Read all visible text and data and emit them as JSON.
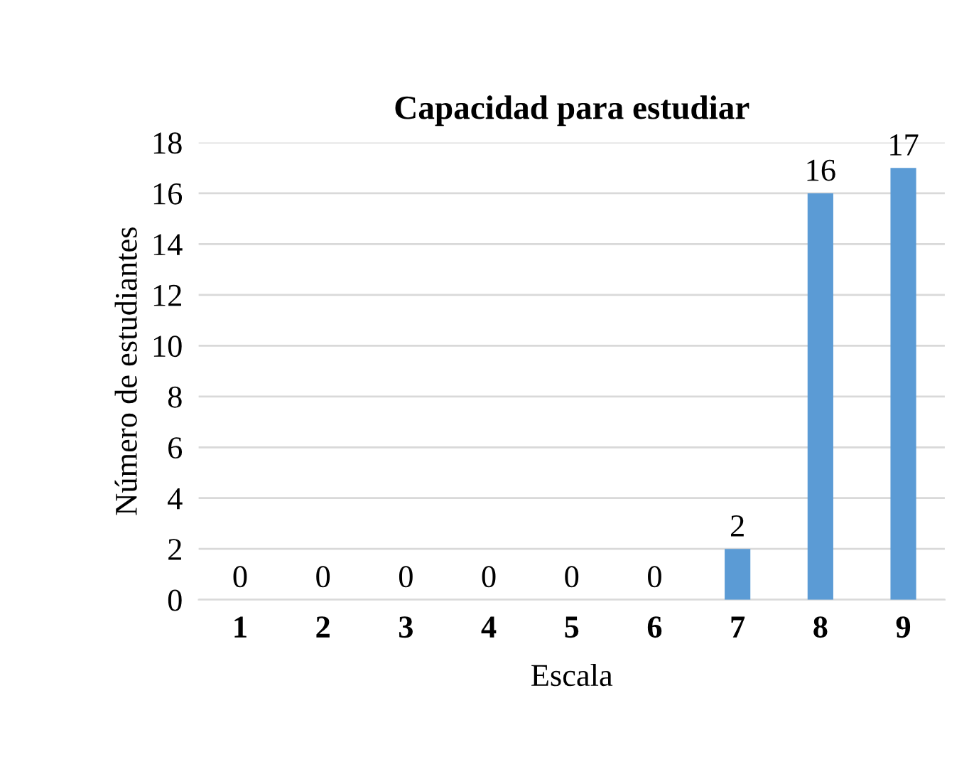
{
  "chart_data": {
    "type": "bar",
    "title": "Capacidad para estudiar",
    "xlabel": "Escala",
    "ylabel": "Número de estudiantes",
    "categories": [
      "1",
      "2",
      "3",
      "4",
      "5",
      "6",
      "7",
      "8",
      "9"
    ],
    "values": [
      0,
      0,
      0,
      0,
      0,
      0,
      2,
      16,
      17
    ],
    "color": "#5b9bd5",
    "ylim": [
      0,
      18
    ],
    "yticks": [
      0,
      2,
      4,
      6,
      8,
      10,
      12,
      14,
      16,
      18
    ],
    "grid": "y",
    "data_labels": true,
    "legend": false
  }
}
